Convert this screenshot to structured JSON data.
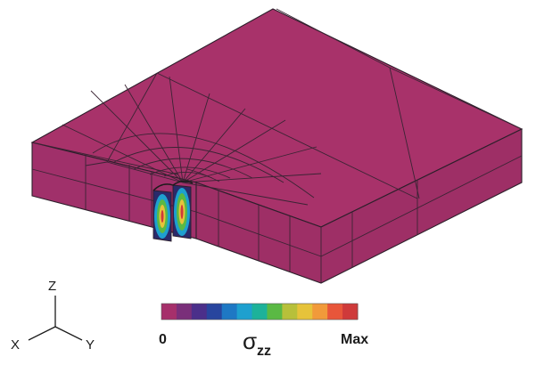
{
  "colorbar": {
    "min_label": "0",
    "max_label": "Max",
    "quantity_symbol": "σ",
    "quantity_subscript": "zz",
    "colors": [
      "#a6306b",
      "#7a2f7a",
      "#4b2f8a",
      "#28459e",
      "#1e78c4",
      "#1ea0cf",
      "#1db29a",
      "#5ab944",
      "#b7c03a",
      "#e6c33a",
      "#f19a3a",
      "#e8563a",
      "#cf3a3a"
    ]
  },
  "axes_triad": {
    "z_label": "Z",
    "x_label": "X",
    "y_label": "Y"
  },
  "model": {
    "fill_color": "#a8326a",
    "side_color": "#9b2f63",
    "edge_color": "#2d1f2b"
  }
}
